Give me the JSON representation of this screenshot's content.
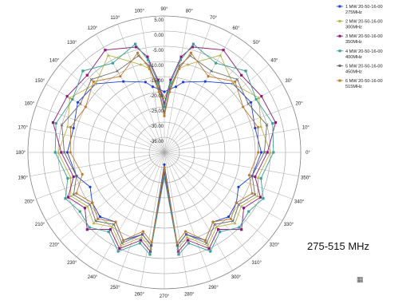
{
  "chart_data": {
    "type": "polar-line",
    "angle_unit": "degrees",
    "angle_ticks": [
      0,
      10,
      20,
      30,
      40,
      50,
      60,
      70,
      80,
      90,
      100,
      110,
      120,
      130,
      140,
      150,
      160,
      170,
      180,
      190,
      200,
      210,
      220,
      230,
      240,
      250,
      260,
      270,
      280,
      290,
      300,
      310,
      320,
      330,
      340,
      350
    ],
    "angle_suffix": "°",
    "radial_ticks": [
      5.0,
      0.0,
      -5.0,
      -10.0,
      -15.0,
      -20.0,
      -25.0,
      -30.0,
      -35.0
    ],
    "radial_tick_labels": [
      "5.00",
      "0.00",
      "-5.00",
      "-10.00",
      "-15.00",
      "-20.00",
      "-25.00",
      "-30.00",
      "-35.00"
    ],
    "rlim": [
      -40,
      5
    ],
    "grid": true,
    "legend_position": "top-right",
    "series": [
      {
        "name": "1 MW 20-50-16-00 275MHz",
        "label_lines": [
          "1 MW 20-50-16-00",
          "275MHz"
        ],
        "color": "#1f3fd1",
        "marker": "circle",
        "angles": [
          0,
          15,
          30,
          45,
          60,
          75,
          80,
          85,
          90,
          95,
          100,
          105,
          120,
          135,
          150,
          165,
          180,
          195,
          205,
          215,
          225,
          235,
          245,
          255,
          262,
          270,
          278,
          285,
          295,
          305,
          315,
          325,
          335,
          345
        ],
        "values": [
          -8,
          -9,
          -7,
          -8,
          -13,
          -16,
          -18,
          -19,
          -20,
          -19,
          -18,
          -16,
          -13,
          -8,
          -7,
          -9,
          -8,
          -10,
          -13,
          -11,
          -10,
          -12,
          -8,
          -12,
          -9,
          -36,
          -9,
          -12,
          -8,
          -12,
          -10,
          -11,
          -13,
          -10
        ]
      },
      {
        "name": "2 MW 20-50-16-00 300MHz",
        "label_lines": [
          "2 MW 20-50-16-00",
          "300MHz"
        ],
        "color": "#b8b24a",
        "marker": "triangle",
        "angles": [
          0,
          15,
          30,
          45,
          60,
          75,
          80,
          85,
          90,
          95,
          100,
          105,
          120,
          135,
          150,
          165,
          180,
          195,
          205,
          215,
          225,
          235,
          245,
          255,
          262,
          270,
          278,
          285,
          295,
          305,
          315,
          325,
          335,
          345
        ],
        "values": [
          -5,
          -7,
          -4,
          -8,
          -3,
          -10,
          -12,
          -18,
          -22,
          -18,
          -12,
          -10,
          -3,
          -8,
          -4,
          -7,
          -5,
          -8,
          -6,
          -9,
          -7,
          -10,
          -6,
          -11,
          -8,
          -34,
          -8,
          -11,
          -6,
          -10,
          -7,
          -9,
          -6,
          -8
        ]
      },
      {
        "name": "3 MW 20-50-16-00 350MHz",
        "label_lines": [
          "3 MW 20-50-16-00",
          "350MHz"
        ],
        "color": "#8a1a7a",
        "marker": "square",
        "angles": [
          0,
          15,
          30,
          45,
          60,
          75,
          80,
          85,
          90,
          95,
          100,
          105,
          120,
          135,
          150,
          165,
          180,
          195,
          205,
          215,
          225,
          235,
          245,
          255,
          262,
          270,
          278,
          285,
          295,
          305,
          315,
          325,
          335,
          345
        ],
        "values": [
          -6,
          -2,
          -3,
          -4,
          -1,
          -4,
          -8,
          -16,
          -24,
          -16,
          -8,
          -4,
          -1,
          -4,
          -3,
          -2,
          -6,
          -9,
          -5,
          -8,
          -4,
          -9,
          -5,
          -10,
          -7,
          -33,
          -7,
          -10,
          -5,
          -9,
          -4,
          -8,
          -5,
          -9
        ]
      },
      {
        "name": "4 MW 20-50-16-00 400MHz",
        "label_lines": [
          "4 MW 20-50-16-00",
          "400MHz"
        ],
        "color": "#3f9e95",
        "marker": "square",
        "angles": [
          0,
          15,
          30,
          45,
          60,
          75,
          80,
          85,
          90,
          95,
          100,
          105,
          120,
          135,
          150,
          165,
          180,
          195,
          205,
          215,
          225,
          235,
          245,
          255,
          262,
          270,
          278,
          285,
          295,
          305,
          315,
          325,
          335,
          345
        ],
        "values": [
          -4,
          -3,
          -5,
          -2,
          -6,
          -3,
          -9,
          -17,
          -25,
          -17,
          -9,
          -3,
          -6,
          -2,
          -5,
          -3,
          -4,
          -7,
          -4,
          -6,
          -5,
          -8,
          -4,
          -9,
          -6,
          -32,
          -6,
          -9,
          -4,
          -8,
          -5,
          -6,
          -4,
          -7
        ]
      },
      {
        "name": "5 MW 20-50-16-00 450MHz",
        "label_lines": [
          "5 MW 20-50-16-00",
          "450MHz"
        ],
        "color": "#6a6a6a",
        "marker": "x",
        "angles": [
          0,
          15,
          30,
          45,
          60,
          75,
          80,
          85,
          90,
          95,
          100,
          105,
          120,
          135,
          150,
          165,
          180,
          195,
          205,
          215,
          225,
          235,
          245,
          255,
          262,
          270,
          278,
          285,
          295,
          305,
          315,
          325,
          335,
          345
        ],
        "values": [
          -7,
          -5,
          -8,
          -6,
          -9,
          -7,
          -11,
          -19,
          -27,
          -19,
          -11,
          -7,
          -9,
          -6,
          -8,
          -5,
          -7,
          -10,
          -7,
          -10,
          -8,
          -11,
          -7,
          -12,
          -9,
          -34,
          -9,
          -12,
          -7,
          -11,
          -8,
          -10,
          -7,
          -10
        ]
      },
      {
        "name": "6 MW 20-50-16-00 515MHz",
        "label_lines": [
          "6 MW 20-50-16-00",
          "515MHz"
        ],
        "color": "#c07a30",
        "marker": "circle",
        "angles": [
          0,
          15,
          30,
          45,
          60,
          75,
          80,
          85,
          90,
          95,
          100,
          105,
          120,
          135,
          150,
          165,
          180,
          195,
          205,
          215,
          225,
          235,
          245,
          255,
          262,
          270,
          278,
          285,
          295,
          305,
          315,
          325,
          335,
          345
        ],
        "values": [
          -9,
          -8,
          -10,
          -7,
          -11,
          -6,
          -12,
          -20,
          -28,
          -20,
          -12,
          -6,
          -11,
          -7,
          -10,
          -8,
          -9,
          -12,
          -8,
          -11,
          -9,
          -12,
          -8,
          -13,
          -10,
          -35,
          -10,
          -13,
          -8,
          -12,
          -9,
          -11,
          -8,
          -11
        ]
      }
    ]
  },
  "annotation": {
    "frequency_range": "275-515 MHz"
  }
}
